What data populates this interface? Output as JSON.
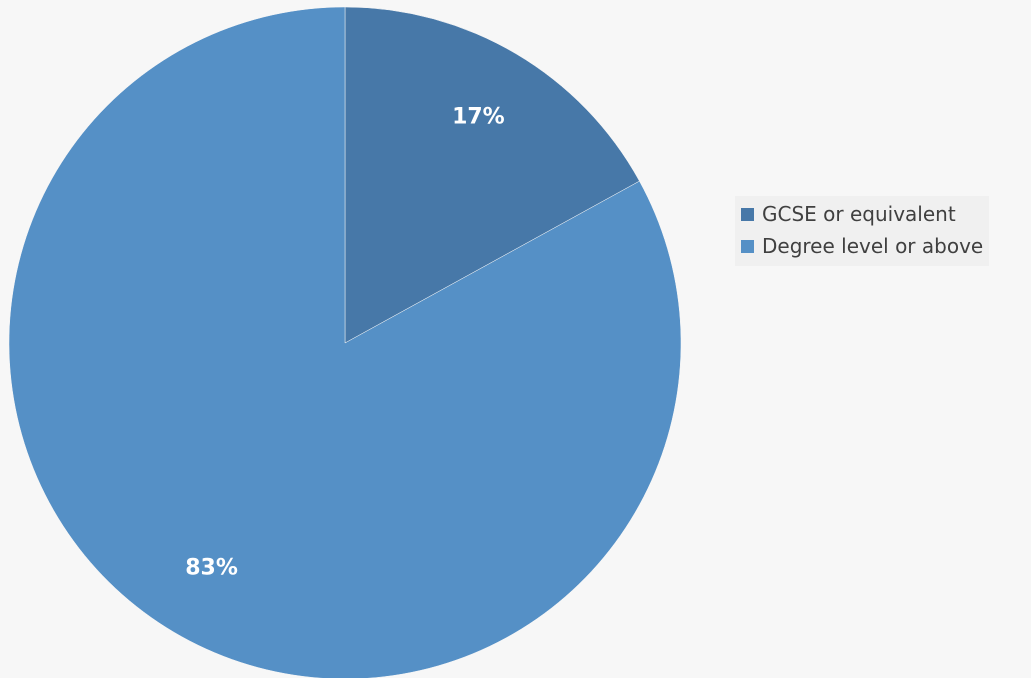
{
  "chart_data": {
    "type": "pie",
    "categories": [
      "GCSE or equivalent",
      "Degree level or above"
    ],
    "values": [
      17,
      83
    ],
    "data_labels": [
      "17%",
      "83%"
    ],
    "colors": [
      "#4778a8",
      "#5590c6"
    ],
    "start_angle_deg": 0,
    "direction": "clockwise",
    "legend_position": "right"
  }
}
